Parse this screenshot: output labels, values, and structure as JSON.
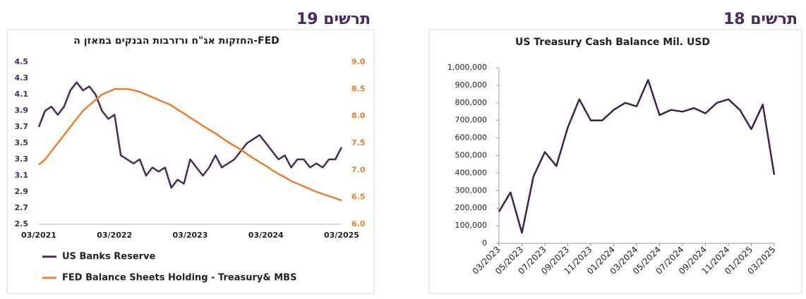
{
  "chart_data": [
    {
      "type": "line",
      "figure_label": "תרשים 19",
      "title": "החזקות אג\"ח ורזרבות הבנקים במאזן ה-FED",
      "x": [
        "03/2021",
        "04/2021",
        "05/2021",
        "06/2021",
        "07/2021",
        "08/2021",
        "09/2021",
        "10/2021",
        "11/2021",
        "12/2021",
        "01/2022",
        "02/2022",
        "03/2022",
        "04/2022",
        "05/2022",
        "06/2022",
        "07/2022",
        "08/2022",
        "09/2022",
        "10/2022",
        "11/2022",
        "12/2022",
        "01/2023",
        "02/2023",
        "03/2023",
        "04/2023",
        "05/2023",
        "06/2023",
        "07/2023",
        "08/2023",
        "09/2023",
        "10/2023",
        "11/2023",
        "12/2023",
        "01/2024",
        "02/2024",
        "03/2024",
        "04/2024",
        "05/2024",
        "06/2024",
        "07/2024",
        "08/2024",
        "09/2024",
        "10/2024",
        "11/2024",
        "12/2024",
        "01/2025",
        "02/2025",
        "03/2025"
      ],
      "xticks": [
        "03/2021",
        "03/2022",
        "03/2023",
        "03/2024",
        "03/2025"
      ],
      "ylim": [
        2.5,
        4.5
      ],
      "yticks": [
        2.5,
        2.7,
        2.9,
        3.1,
        3.3,
        3.5,
        3.7,
        3.9,
        4.1,
        4.3,
        4.5
      ],
      "y2lim": [
        6,
        9
      ],
      "y2ticks": [
        {
          "value": 6,
          "label": "6.0"
        },
        {
          "value": 6.5,
          "label": "6.5"
        },
        {
          "value": 7,
          "label": "7.0"
        },
        {
          "value": 7.5,
          "label": "7.5"
        },
        {
          "value": 8,
          "label": "8.0"
        },
        {
          "value": 8.5,
          "label": "8.5"
        },
        {
          "value": 9,
          "label": "9.0"
        }
      ],
      "legend": "bottom",
      "series": [
        {
          "name": "US Banks Reserve",
          "color": "#4b2860",
          "values": [
            3.7,
            3.9,
            3.95,
            3.85,
            3.95,
            4.15,
            4.25,
            4.15,
            4.2,
            4.1,
            3.9,
            3.8,
            3.85,
            3.35,
            3.3,
            3.25,
            3.3,
            3.1,
            3.2,
            3.15,
            3.2,
            2.95,
            3.05,
            3.0,
            3.3,
            3.2,
            3.1,
            3.2,
            3.35,
            3.2,
            3.25,
            3.3,
            3.4,
            3.5,
            3.55,
            3.6,
            3.5,
            3.4,
            3.3,
            3.35,
            3.2,
            3.3,
            3.3,
            3.2,
            3.25,
            3.2,
            3.3,
            3.3,
            3.45
          ]
        },
        {
          "name": "FED Balance Sheets Holding -  Treasury& MBS",
          "color": "#ed7d31",
          "axis": "y2",
          "values": [
            7.1,
            7.2,
            7.35,
            7.5,
            7.65,
            7.8,
            7.95,
            8.1,
            8.2,
            8.3,
            8.4,
            8.45,
            8.5,
            8.5,
            8.5,
            8.48,
            8.45,
            8.4,
            8.35,
            8.3,
            8.25,
            8.2,
            8.12,
            8.05,
            7.97,
            7.9,
            7.82,
            7.75,
            7.68,
            7.6,
            7.52,
            7.45,
            7.38,
            7.3,
            7.22,
            7.15,
            7.08,
            7.0,
            6.93,
            6.87,
            6.8,
            6.75,
            6.7,
            6.65,
            6.6,
            6.56,
            6.52,
            6.48,
            6.44
          ]
        }
      ]
    },
    {
      "type": "line",
      "figure_label": "תרשים 18",
      "title": "US Treasury Cash Balance Mil. USD",
      "x": [
        "03/2023",
        "04/2023",
        "05/2023",
        "06/2023",
        "07/2023",
        "08/2023",
        "09/2023",
        "10/2023",
        "11/2023",
        "12/2023",
        "01/2024",
        "02/2024",
        "03/2024",
        "04/2024",
        "05/2024",
        "06/2024",
        "07/2024",
        "08/2024",
        "09/2024",
        "10/2024",
        "11/2024",
        "12/2024",
        "01/2025",
        "02/2025",
        "03/2025"
      ],
      "xticks": [
        "03/2023",
        "05/2023",
        "07/2023",
        "09/2023",
        "11/2023",
        "01/2024",
        "03/2024",
        "05/2024",
        "07/2024",
        "09/2024",
        "11/2024",
        "01/2025",
        "03/2025"
      ],
      "ylim": [
        0,
        1000000
      ],
      "yticks": [
        0,
        {
          "value": 100000,
          "label": "100,000"
        },
        {
          "value": 200000,
          "label": "200,000"
        },
        {
          "value": 300000,
          "label": "300,000"
        },
        {
          "value": 400000,
          "label": "400,000"
        },
        {
          "value": 500000,
          "label": "500,000"
        },
        {
          "value": 600000,
          "label": "600,000"
        },
        {
          "value": 700000,
          "label": "700,000"
        },
        {
          "value": 800000,
          "label": "800,000"
        },
        {
          "value": 900000,
          "label": "900,000"
        },
        {
          "value": 1000000,
          "label": "1,000,000"
        }
      ],
      "color": "#3f2150",
      "values": [
        180000,
        290000,
        60000,
        380000,
        520000,
        440000,
        660000,
        820000,
        700000,
        700000,
        760000,
        800000,
        780000,
        930000,
        730000,
        760000,
        750000,
        770000,
        740000,
        800000,
        820000,
        760000,
        650000,
        790000,
        390000
      ]
    }
  ]
}
